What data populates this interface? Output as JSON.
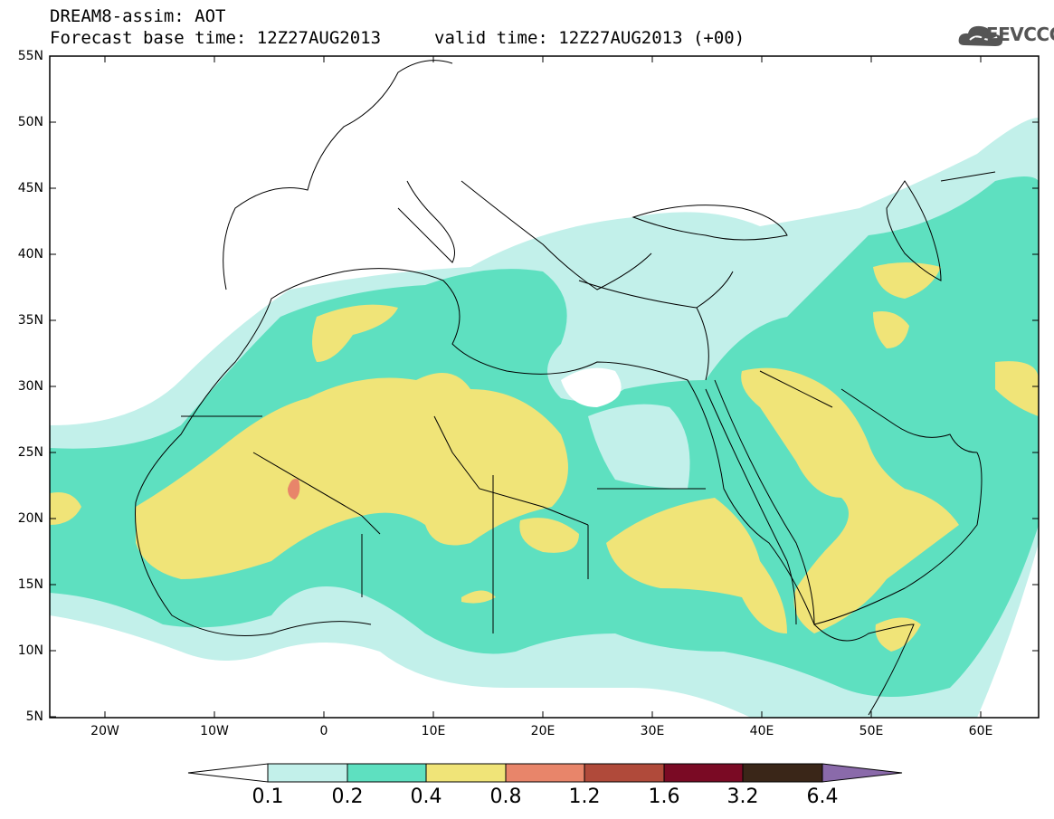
{
  "header": {
    "title": "DREAM8-assim: AOT",
    "forecast_line": "Forecast base time: 12Z27AUG2013",
    "valid_line": "valid time: 12Z27AUG2013 (+00)",
    "logo_text": "SEEVCCC"
  },
  "map": {
    "lat_labels": [
      "55N",
      "50N",
      "45N",
      "40N",
      "35N",
      "30N",
      "25N",
      "20N",
      "15N",
      "10N",
      "5N"
    ],
    "lon_labels": [
      "20W",
      "10W",
      "0",
      "10E",
      "20E",
      "30E",
      "40E",
      "50E",
      "60E"
    ],
    "colors": {
      "c01": "#c2f0ea",
      "c02": "#5ee0c0",
      "c04": "#f0e478",
      "c08": "#e8856a",
      "land_line": "#000000"
    }
  },
  "colorbar": {
    "labels": [
      "0.1",
      "0.2",
      "0.4",
      "0.8",
      "1.2",
      "1.6",
      "3.2",
      "6.4"
    ],
    "colors": [
      "#ffffff",
      "#c2f0ea",
      "#5ee0c0",
      "#f0e478",
      "#e8856a",
      "#b04a3a",
      "#7a0a24",
      "#3a2618",
      "#8a6aaa"
    ]
  }
}
